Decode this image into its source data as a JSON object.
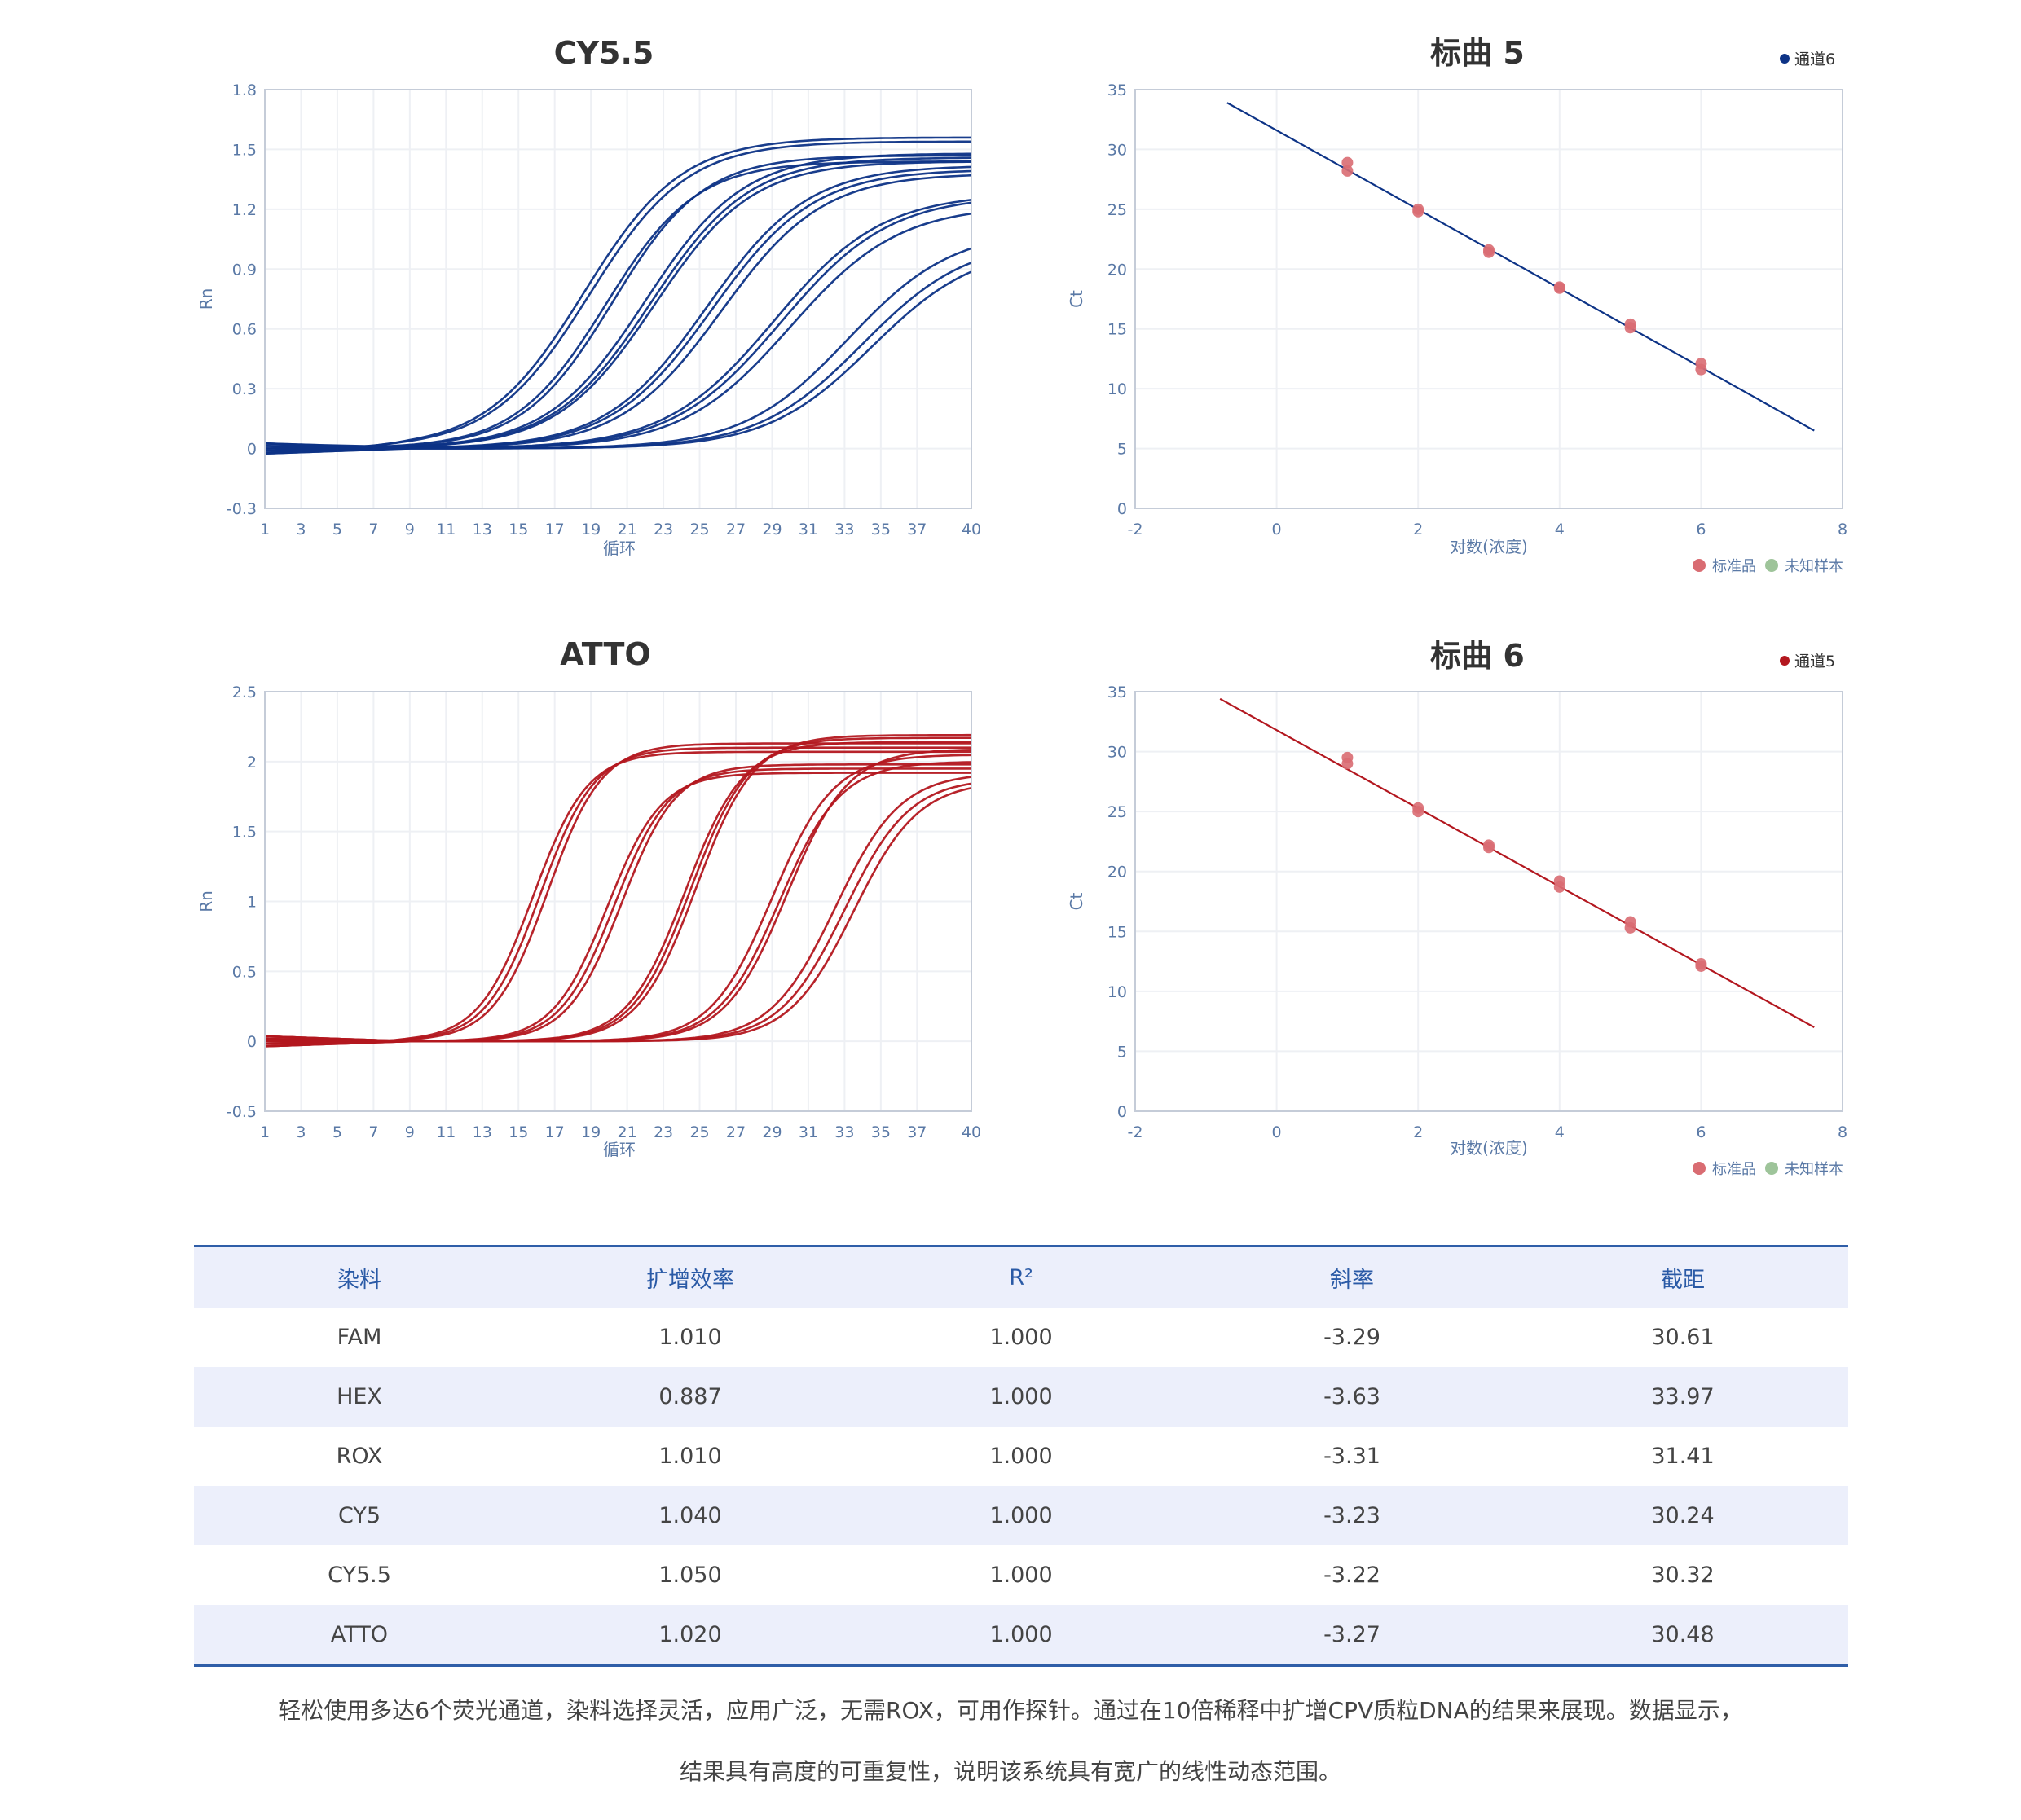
{
  "chart_data": [
    {
      "type": "line",
      "title": "CY5.5",
      "xlabel": "循环",
      "ylabel": "Rn",
      "xlim": [
        1,
        40
      ],
      "ylim": [
        -0.3,
        1.8
      ],
      "x_ticks": [
        "1",
        "3",
        "5",
        "7",
        "9",
        "11",
        "13",
        "15",
        "17",
        "19",
        "21",
        "23",
        "25",
        "27",
        "29",
        "31",
        "33",
        "35",
        "37",
        "40"
      ],
      "y_ticks": [
        "-0.3",
        "0",
        "0.3",
        "0.6",
        "0.9",
        "1.2",
        "1.5",
        "1.8"
      ],
      "grid": true,
      "color": "#0d3386",
      "curve_model": "sigmoid amplification curves, one per sample",
      "series": [
        {
          "midpoint": 18.6,
          "plateau": 1.56,
          "slope": 2.7
        },
        {
          "midpoint": 18.9,
          "plateau": 1.54,
          "slope": 2.7
        },
        {
          "midpoint": 19.8,
          "plateau": 1.44,
          "slope": 2.5
        },
        {
          "midpoint": 20.2,
          "plateau": 1.47,
          "slope": 2.5
        },
        {
          "midpoint": 22.0,
          "plateau": 1.48,
          "slope": 2.7
        },
        {
          "midpoint": 22.3,
          "plateau": 1.46,
          "slope": 2.7
        },
        {
          "midpoint": 22.5,
          "plateau": 1.44,
          "slope": 2.7
        },
        {
          "midpoint": 25.4,
          "plateau": 1.42,
          "slope": 2.8
        },
        {
          "midpoint": 25.7,
          "plateau": 1.4,
          "slope": 2.8
        },
        {
          "midpoint": 26.2,
          "plateau": 1.38,
          "slope": 2.8
        },
        {
          "midpoint": 29.1,
          "plateau": 1.28,
          "slope": 3.0
        },
        {
          "midpoint": 29.5,
          "plateau": 1.27,
          "slope": 3.0
        },
        {
          "midpoint": 30.0,
          "plateau": 1.22,
          "slope": 3.0
        },
        {
          "midpoint": 33.2,
          "plateau": 1.1,
          "slope": 2.9
        },
        {
          "midpoint": 34.0,
          "plateau": 1.05,
          "slope": 2.9
        },
        {
          "midpoint": 34.5,
          "plateau": 1.02,
          "slope": 2.9
        }
      ]
    },
    {
      "type": "scatter",
      "title": "标曲 5",
      "xlabel": "对数(浓度)",
      "ylabel": "Ct",
      "xlim": [
        -2,
        8
      ],
      "ylim": [
        0,
        35
      ],
      "x_ticks": [
        "-2",
        "0",
        "2",
        "4",
        "6",
        "8"
      ],
      "y_ticks": [
        "0",
        "5",
        "10",
        "15",
        "20",
        "25",
        "30",
        "35"
      ],
      "grid": true,
      "line_legend": "通道6",
      "line_color": "#0d3386",
      "fit_line": {
        "x": [
          -0.7,
          7.6
        ],
        "y": [
          33.9,
          6.5
        ]
      },
      "points": [
        {
          "x": 1,
          "y": 28.9
        },
        {
          "x": 1,
          "y": 28.2
        },
        {
          "x": 2,
          "y": 25.0
        },
        {
          "x": 2,
          "y": 24.8
        },
        {
          "x": 3,
          "y": 21.6
        },
        {
          "x": 3,
          "y": 21.4
        },
        {
          "x": 4,
          "y": 18.5
        },
        {
          "x": 4,
          "y": 18.4
        },
        {
          "x": 5,
          "y": 15.4
        },
        {
          "x": 5,
          "y": 15.1
        },
        {
          "x": 6,
          "y": 12.1
        },
        {
          "x": 6,
          "y": 11.6
        }
      ],
      "point_legend": [
        {
          "name": "标准品",
          "color": "#d96c72"
        },
        {
          "name": "未知样本",
          "color": "#9ec49a"
        }
      ]
    },
    {
      "type": "line",
      "title": "ATTO",
      "xlabel": "循环",
      "ylabel": "Rn",
      "xlim": [
        1,
        40
      ],
      "ylim": [
        -0.5,
        2.5
      ],
      "x_ticks": [
        "1",
        "3",
        "5",
        "7",
        "9",
        "11",
        "13",
        "15",
        "17",
        "19",
        "21",
        "23",
        "25",
        "27",
        "29",
        "31",
        "33",
        "35",
        "37",
        "40"
      ],
      "y_ticks": [
        "-0.5",
        "0",
        "0.5",
        "1",
        "1.5",
        "2",
        "2.5"
      ],
      "grid": true,
      "color": "#b3171f",
      "curve_model": "sigmoid amplification curves, one per sample",
      "series": [
        {
          "midpoint": 15.8,
          "plateau": 2.07,
          "slope": 1.5
        },
        {
          "midpoint": 16.2,
          "plateau": 2.1,
          "slope": 1.5
        },
        {
          "midpoint": 16.6,
          "plateau": 2.13,
          "slope": 1.5
        },
        {
          "midpoint": 19.9,
          "plateau": 1.92,
          "slope": 1.5
        },
        {
          "midpoint": 20.3,
          "plateau": 1.95,
          "slope": 1.5
        },
        {
          "midpoint": 20.7,
          "plateau": 1.98,
          "slope": 1.5
        },
        {
          "midpoint": 24.2,
          "plateau": 2.14,
          "slope": 1.6
        },
        {
          "midpoint": 24.5,
          "plateau": 2.17,
          "slope": 1.6
        },
        {
          "midpoint": 24.8,
          "plateau": 2.19,
          "slope": 1.6
        },
        {
          "midpoint": 29.0,
          "plateau": 2.05,
          "slope": 1.7
        },
        {
          "midpoint": 29.4,
          "plateau": 2.0,
          "slope": 1.7
        },
        {
          "midpoint": 29.8,
          "plateau": 2.09,
          "slope": 1.7
        },
        {
          "midpoint": 32.5,
          "plateau": 1.92,
          "slope": 1.8
        },
        {
          "midpoint": 33.0,
          "plateau": 1.88,
          "slope": 1.8
        },
        {
          "midpoint": 33.5,
          "plateau": 1.86,
          "slope": 1.8
        }
      ]
    },
    {
      "type": "scatter",
      "title": "标曲 6",
      "xlabel": "对数(浓度)",
      "ylabel": "Ct",
      "xlim": [
        -2,
        8
      ],
      "ylim": [
        0,
        35
      ],
      "x_ticks": [
        "-2",
        "0",
        "2",
        "4",
        "6",
        "8"
      ],
      "y_ticks": [
        "0",
        "5",
        "10",
        "15",
        "20",
        "25",
        "30",
        "35"
      ],
      "grid": true,
      "line_legend": "通道5",
      "line_color": "#b3171f",
      "fit_line": {
        "x": [
          -0.8,
          7.6
        ],
        "y": [
          34.4,
          7.0
        ]
      },
      "points": [
        {
          "x": 1,
          "y": 29.5
        },
        {
          "x": 1,
          "y": 29.0
        },
        {
          "x": 2,
          "y": 25.3
        },
        {
          "x": 2,
          "y": 25.0
        },
        {
          "x": 3,
          "y": 22.2
        },
        {
          "x": 3,
          "y": 22.0
        },
        {
          "x": 4,
          "y": 19.2
        },
        {
          "x": 4,
          "y": 18.7
        },
        {
          "x": 5,
          "y": 15.8
        },
        {
          "x": 5,
          "y": 15.3
        },
        {
          "x": 6,
          "y": 12.3
        },
        {
          "x": 6,
          "y": 12.1
        }
      ],
      "point_legend": [
        {
          "name": "标准品",
          "color": "#d96c72"
        },
        {
          "name": "未知样本",
          "color": "#9ec49a"
        }
      ]
    }
  ],
  "table": {
    "headers": [
      "染料",
      "扩增效率",
      "R²",
      "斜率",
      "截距"
    ],
    "rows": [
      [
        "FAM",
        "1.010",
        "1.000",
        "-3.29",
        "30.61"
      ],
      [
        "HEX",
        "0.887",
        "1.000",
        "-3.63",
        "33.97"
      ],
      [
        "ROX",
        "1.010",
        "1.000",
        "-3.31",
        "31.41"
      ],
      [
        "CY5",
        "1.040",
        "1.000",
        "-3.23",
        "30.24"
      ],
      [
        "CY5.5",
        "1.050",
        "1.000",
        "-3.22",
        "30.32"
      ],
      [
        "ATTO",
        "1.020",
        "1.000",
        "-3.27",
        "30.48"
      ]
    ]
  },
  "caption": {
    "line1": "轻松使用多达6个荧光通道，染料选择灵活，应用广泛，无需ROX，可用作探针。通过在10倍稀释中扩增CPV质粒DNA的结果来展现。数据显示，",
    "line2": "结果具有高度的可重复性，说明该系统具有宽广的线性动态范围。"
  },
  "colors": {
    "axis": "#c5ccd8",
    "grid": "#eef0f4",
    "tick_label": "#5a79a6",
    "table_header_bg": "#eceffb",
    "table_rule": "#2f5ea8"
  }
}
